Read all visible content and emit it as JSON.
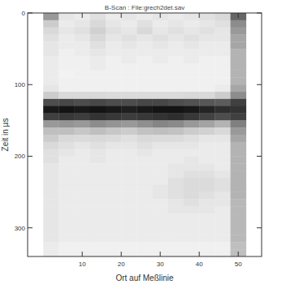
{
  "chart_data": {
    "type": "heatmap",
    "title": "B-Scan : File:grech2det.sav",
    "x_label": "Ort auf Meßlinie",
    "y_label": "Zeit in µs",
    "xlim": [
      -4,
      56
    ],
    "xticks": [
      10,
      20,
      30,
      40,
      50
    ],
    "ylim": [
      0,
      340
    ],
    "yticks": [
      0,
      100,
      200,
      300
    ],
    "grid": false,
    "color_range": [
      0,
      100
    ],
    "x_edges": [
      0,
      4,
      8,
      12,
      16,
      20,
      24,
      28,
      32,
      36,
      40,
      44,
      48,
      52
    ],
    "y_edges": [
      0,
      10,
      20,
      30,
      40,
      50,
      60,
      70,
      80,
      90,
      100,
      110,
      120,
      130,
      140,
      150,
      160,
      170,
      180,
      190,
      200,
      210,
      220,
      230,
      240,
      250,
      260,
      270,
      280,
      290,
      300,
      310,
      320,
      330,
      340
    ],
    "cells": [
      [
        40,
        10,
        8,
        12,
        8,
        10,
        8,
        10,
        8,
        10,
        12,
        15,
        60
      ],
      [
        20,
        8,
        10,
        15,
        10,
        8,
        12,
        8,
        10,
        8,
        10,
        12,
        45
      ],
      [
        15,
        10,
        12,
        18,
        12,
        10,
        15,
        10,
        12,
        10,
        12,
        10,
        40
      ],
      [
        12,
        8,
        10,
        15,
        10,
        12,
        10,
        12,
        10,
        12,
        10,
        10,
        35
      ],
      [
        10,
        8,
        8,
        12,
        8,
        10,
        8,
        10,
        8,
        10,
        8,
        8,
        35
      ],
      [
        10,
        6,
        8,
        10,
        8,
        8,
        8,
        8,
        8,
        8,
        8,
        8,
        30
      ],
      [
        8,
        6,
        6,
        8,
        6,
        8,
        6,
        8,
        6,
        8,
        6,
        6,
        30
      ],
      [
        8,
        6,
        6,
        8,
        6,
        6,
        6,
        6,
        6,
        6,
        6,
        6,
        30
      ],
      [
        8,
        5,
        6,
        6,
        6,
        6,
        6,
        6,
        6,
        6,
        6,
        6,
        30
      ],
      [
        8,
        6,
        6,
        6,
        6,
        6,
        6,
        6,
        6,
        6,
        6,
        6,
        30
      ],
      [
        10,
        6,
        6,
        6,
        6,
        6,
        6,
        6,
        6,
        6,
        6,
        8,
        35
      ],
      [
        20,
        15,
        15,
        15,
        14,
        14,
        14,
        14,
        14,
        15,
        15,
        20,
        45
      ],
      [
        70,
        72,
        70,
        72,
        70,
        70,
        72,
        72,
        70,
        68,
        66,
        64,
        75
      ],
      [
        90,
        92,
        90,
        92,
        90,
        88,
        90,
        92,
        92,
        90,
        86,
        82,
        80
      ],
      [
        75,
        78,
        76,
        80,
        78,
        76,
        78,
        80,
        82,
        78,
        74,
        70,
        75
      ],
      [
        40,
        42,
        40,
        45,
        42,
        40,
        44,
        48,
        46,
        40,
        36,
        30,
        50
      ],
      [
        25,
        25,
        22,
        25,
        22,
        20,
        24,
        25,
        24,
        20,
        18,
        15,
        40
      ],
      [
        20,
        15,
        14,
        15,
        14,
        12,
        15,
        14,
        14,
        12,
        10,
        10,
        35
      ],
      [
        15,
        12,
        10,
        12,
        10,
        10,
        12,
        10,
        10,
        10,
        8,
        8,
        30
      ],
      [
        12,
        10,
        8,
        10,
        8,
        8,
        10,
        8,
        8,
        8,
        8,
        8,
        30
      ],
      [
        12,
        8,
        8,
        10,
        8,
        8,
        8,
        8,
        8,
        10,
        8,
        8,
        30
      ],
      [
        10,
        8,
        8,
        8,
        8,
        8,
        8,
        8,
        10,
        10,
        10,
        8,
        30
      ],
      [
        10,
        8,
        8,
        8,
        8,
        8,
        8,
        8,
        10,
        12,
        12,
        10,
        30
      ],
      [
        10,
        8,
        8,
        8,
        8,
        8,
        8,
        8,
        12,
        14,
        14,
        12,
        30
      ],
      [
        10,
        8,
        8,
        8,
        8,
        8,
        8,
        10,
        12,
        14,
        14,
        12,
        30
      ],
      [
        10,
        8,
        8,
        8,
        8,
        8,
        8,
        10,
        12,
        14,
        12,
        10,
        30
      ],
      [
        10,
        8,
        8,
        8,
        8,
        8,
        8,
        8,
        10,
        12,
        10,
        10,
        28
      ],
      [
        10,
        8,
        8,
        8,
        8,
        8,
        8,
        8,
        10,
        10,
        10,
        8,
        28
      ],
      [
        10,
        8,
        8,
        8,
        8,
        8,
        8,
        8,
        8,
        8,
        8,
        8,
        28
      ],
      [
        10,
        8,
        8,
        8,
        8,
        8,
        8,
        8,
        8,
        8,
        8,
        8,
        28
      ],
      [
        10,
        8,
        8,
        8,
        8,
        8,
        8,
        8,
        8,
        8,
        8,
        8,
        28
      ],
      [
        10,
        8,
        8,
        8,
        8,
        8,
        8,
        8,
        8,
        8,
        8,
        8,
        28
      ],
      [
        8,
        6,
        6,
        6,
        6,
        6,
        6,
        6,
        6,
        6,
        6,
        6,
        25
      ],
      [
        8,
        6,
        6,
        6,
        6,
        6,
        6,
        6,
        6,
        6,
        6,
        6,
        25
      ]
    ]
  }
}
